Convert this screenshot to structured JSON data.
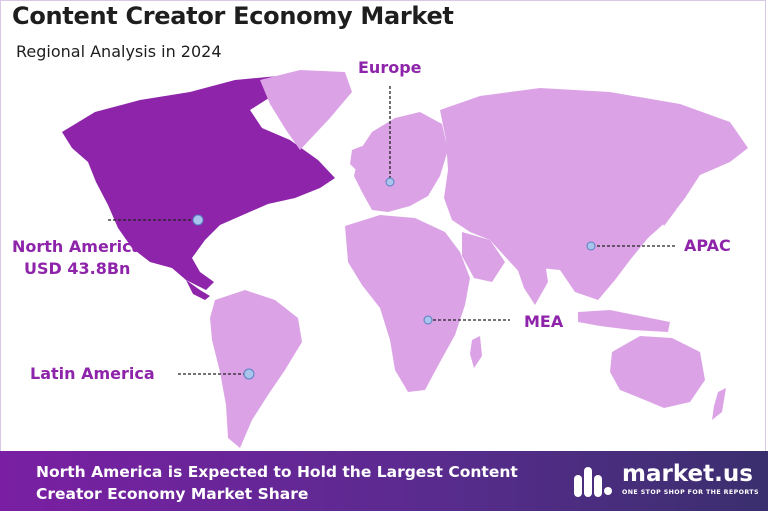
{
  "header": {
    "title": "Content Creator Economy Market",
    "subtitle": "Regional Analysis in 2024"
  },
  "regions": [
    {
      "key": "north-america",
      "label": "North America",
      "value": "USD 43.8Bn",
      "highlighted": true
    },
    {
      "key": "europe",
      "label": "Europe",
      "highlighted": false
    },
    {
      "key": "apac",
      "label": "APAC",
      "highlighted": false
    },
    {
      "key": "mea",
      "label": "MEA",
      "highlighted": false
    },
    {
      "key": "latin-america",
      "label": "Latin America",
      "highlighted": false
    }
  ],
  "footer": {
    "text": "North America is Expected to Hold the Largest Content Creator Economy Market Share"
  },
  "brand": {
    "name": "market.us",
    "tagline": "ONE STOP SHOP FOR THE REPORTS",
    "icon": "market-us-logo-icon"
  },
  "colors": {
    "highlight": "#8e24aa",
    "land": "#dba3e6",
    "label": "#8e24aa",
    "footer_start": "#7a1fa3",
    "footer_end": "#3a2f6e",
    "marker": "#a9c5ee"
  }
}
